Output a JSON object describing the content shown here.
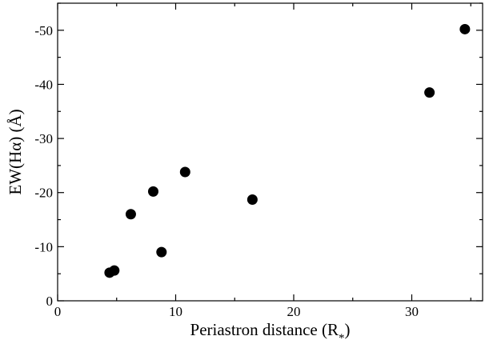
{
  "chart_data": {
    "type": "scatter",
    "title": "",
    "xlabel_main": "Periastron distance (R",
    "xlabel_sub": "*",
    "xlabel_close": ")",
    "ylabel": "EW(Hα) (Å)",
    "xlim": [
      0,
      36
    ],
    "ylim": [
      0,
      -55
    ],
    "x_ticks": [
      0,
      10,
      20,
      30
    ],
    "x_tick_labels": [
      "0",
      "10",
      "20",
      "30"
    ],
    "y_ticks": [
      0,
      -10,
      -20,
      -30,
      -40,
      -50
    ],
    "y_tick_labels": [
      "0",
      "-10",
      "-20",
      "-30",
      "-40",
      "-50"
    ],
    "grid": false,
    "legend": "none",
    "marker_color": "#000000",
    "series": [
      {
        "x": [
          4.4,
          4.8,
          6.2,
          8.1,
          8.8,
          10.8,
          16.5,
          31.5,
          34.5
        ],
        "y": [
          -5.2,
          -5.6,
          -16.0,
          -20.2,
          -9.0,
          -23.8,
          -18.7,
          -38.5,
          -50.2
        ]
      }
    ]
  }
}
